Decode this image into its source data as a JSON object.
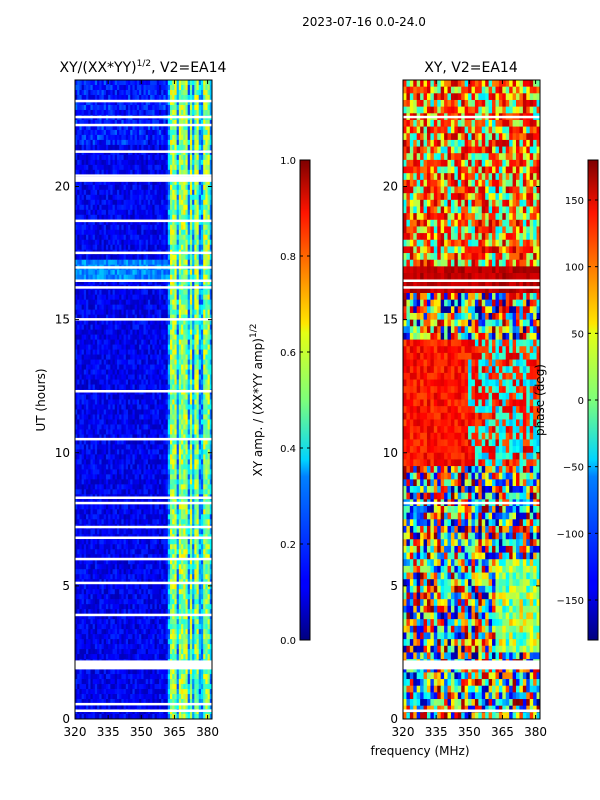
{
  "header": {
    "title": "2023-07-16 0.0-24.0"
  },
  "chart_data": [
    {
      "type": "heatmap",
      "title_main": "XY/(XX*YY)",
      "title_sup": "1/2",
      "title_rest": ", V2=EA14",
      "ylabel": "UT (hours)",
      "xlabel": "",
      "xlim": [
        320,
        382
      ],
      "ylim": [
        0,
        24
      ],
      "xticks": [
        320,
        335,
        350,
        365,
        380
      ],
      "yticks": [
        0,
        5,
        10,
        15,
        20
      ],
      "colorbar": {
        "label_main": "XY amp. / (XX*YY amp)",
        "label_sup": "1/2",
        "range": [
          0.0,
          1.0
        ],
        "ticks": [
          "0.0",
          "0.2",
          "0.4",
          "0.6",
          "0.8",
          "1.0"
        ],
        "tick_values": [
          0.0,
          0.2,
          0.4,
          0.6,
          0.8,
          1.0
        ]
      },
      "flagged_bands": [
        0.3,
        0.55,
        1.9,
        2.1,
        3.9,
        5.1,
        6.0,
        6.8,
        7.2,
        8.1,
        8.3,
        10.5,
        12.3,
        15.0,
        16.2,
        16.45,
        16.95,
        17.5,
        18.7,
        20.4,
        21.3,
        22.3,
        22.6,
        23.2
      ],
      "colormap": "jet"
    },
    {
      "type": "heatmap",
      "title_main": "XY, V2=EA14",
      "ylabel": "",
      "xlabel": "frequency (MHz)",
      "xlim": [
        320,
        382
      ],
      "ylim": [
        0,
        24
      ],
      "xticks": [
        320,
        335,
        350,
        365,
        380
      ],
      "yticks": [
        0,
        5,
        10,
        15,
        20
      ],
      "colorbar": {
        "label_main": "phase (deg)",
        "range": [
          -180,
          180
        ],
        "ticks": [
          "−150",
          "−100",
          "−50",
          "0",
          "50",
          "100",
          "150"
        ],
        "tick_values": [
          -150,
          -100,
          -50,
          0,
          50,
          100,
          150
        ]
      },
      "flagged_bands": [
        0.3,
        1.9,
        2.1,
        8.1,
        16.2,
        16.45,
        22.6
      ],
      "colormap": "jet"
    }
  ]
}
